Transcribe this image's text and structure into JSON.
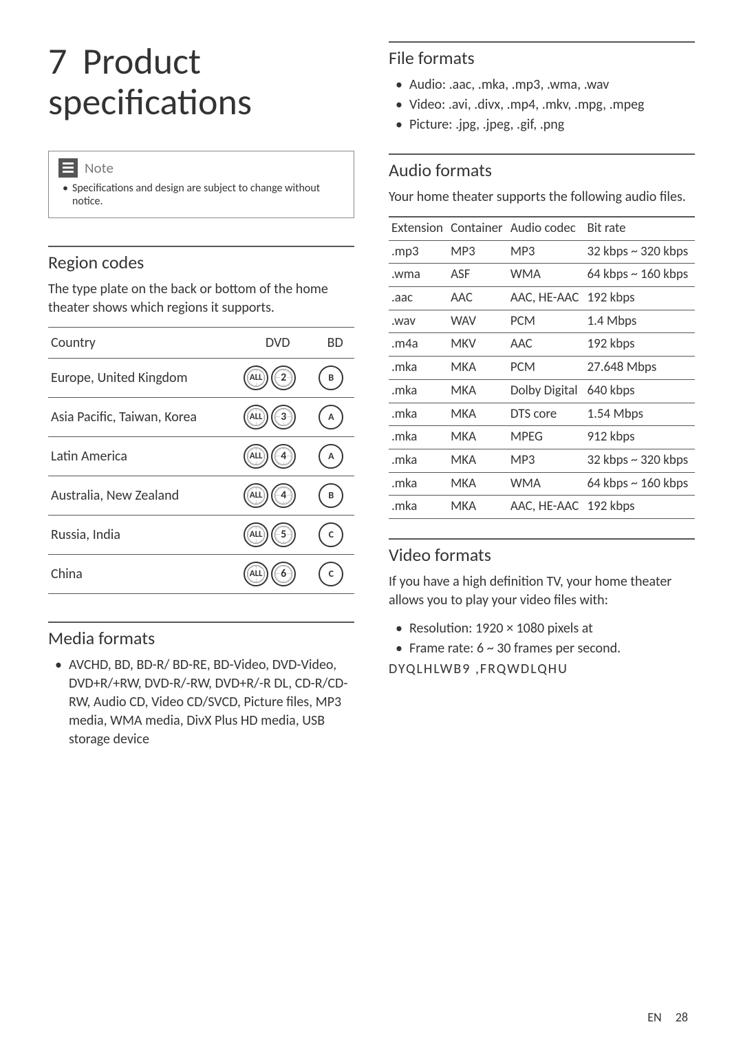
{
  "chapter": {
    "num": "7",
    "title": "Product specifications"
  },
  "note": {
    "label": "Note",
    "body": "Specifications and design are subject to change without notice."
  },
  "region": {
    "heading": "Region codes",
    "intro": "The type plate on the back or bottom of the home theater shows which regions it supports.",
    "headers": {
      "country": "Country",
      "dvd": "DVD",
      "bd": "BD"
    },
    "rows": [
      {
        "country": "Europe, United Kingdom",
        "dvd_all": "ALL",
        "dvd_num": "2",
        "bd": "B"
      },
      {
        "country": "Asia Pacific, Taiwan, Korea",
        "dvd_all": "ALL",
        "dvd_num": "3",
        "bd": "A"
      },
      {
        "country": "Latin America",
        "dvd_all": "ALL",
        "dvd_num": "4",
        "bd": "A"
      },
      {
        "country": "Australia, New Zealand",
        "dvd_all": "ALL",
        "dvd_num": "4",
        "bd": "B"
      },
      {
        "country": "Russia, India",
        "dvd_all": "ALL",
        "dvd_num": "5",
        "bd": "C"
      },
      {
        "country": "China",
        "dvd_all": "ALL",
        "dvd_num": "6",
        "bd": "C"
      }
    ]
  },
  "media": {
    "heading": "Media formats",
    "item": "AVCHD, BD, BD-R/ BD-RE, BD-Video, DVD-Video, DVD+R/+RW, DVD-R/-RW, DVD+R/-R DL, CD-R/CD-RW, Audio CD, Video CD/SVCD, Picture files, MP3 media, WMA media, DivX Plus HD media, USB storage device"
  },
  "file": {
    "heading": "File formats",
    "items": [
      "Audio: .aac, .mka, .mp3, .wma, .wav",
      "Video: .avi, .divx, .mp4, .mkv, .mpg, .mpeg",
      "Picture: .jpg, .jpeg, .gif, .png"
    ]
  },
  "audio": {
    "heading": "Audio formats",
    "intro": "Your home theater supports the following audio files.",
    "headers": {
      "ext": "Extension",
      "container": "Container",
      "codec": "Audio codec",
      "bitrate": "Bit rate"
    },
    "rows": [
      {
        "ext": ".mp3",
        "container": "MP3",
        "codec": "MP3",
        "bitrate": "32 kbps ~ 320 kbps"
      },
      {
        "ext": ".wma",
        "container": "ASF",
        "codec": "WMA",
        "bitrate": "64 kbps ~ 160 kbps"
      },
      {
        "ext": ".aac",
        "container": "AAC",
        "codec": "AAC, HE-AAC",
        "bitrate": "192 kbps"
      },
      {
        "ext": ".wav",
        "container": "WAV",
        "codec": "PCM",
        "bitrate": "1.4 Mbps"
      },
      {
        "ext": ".m4a",
        "container": "MKV",
        "codec": "AAC",
        "bitrate": "192 kbps"
      },
      {
        "ext": ".mka",
        "container": "MKA",
        "codec": "PCM",
        "bitrate": "27.648 Mbps"
      },
      {
        "ext": ".mka",
        "container": "MKA",
        "codec": "Dolby Digital",
        "bitrate": "640 kbps"
      },
      {
        "ext": ".mka",
        "container": "MKA",
        "codec": "DTS core",
        "bitrate": "1.54 Mbps"
      },
      {
        "ext": ".mka",
        "container": "MKA",
        "codec": "MPEG",
        "bitrate": "912 kbps"
      },
      {
        "ext": ".mka",
        "container": "MKA",
        "codec": "MP3",
        "bitrate": "32 kbps ~ 320 kbps"
      },
      {
        "ext": ".mka",
        "container": "MKA",
        "codec": "WMA",
        "bitrate": "64 kbps ~ 160 kbps"
      },
      {
        "ext": ".mka",
        "container": "MKA",
        "codec": "AAC, HE-AAC",
        "bitrate": "192 kbps"
      }
    ]
  },
  "video": {
    "heading": "Video formats",
    "intro": "If you have a high definition TV, your home theater allows you to play your video files with:",
    "items": [
      "Resolution: 1920 × 1080 pixels at",
      "Frame rate: 6 ~ 30 frames per second."
    ],
    "special": "DYQLHLWB9 ,FRQWDLQHU"
  },
  "footer": {
    "lang": "EN",
    "page": "28"
  }
}
